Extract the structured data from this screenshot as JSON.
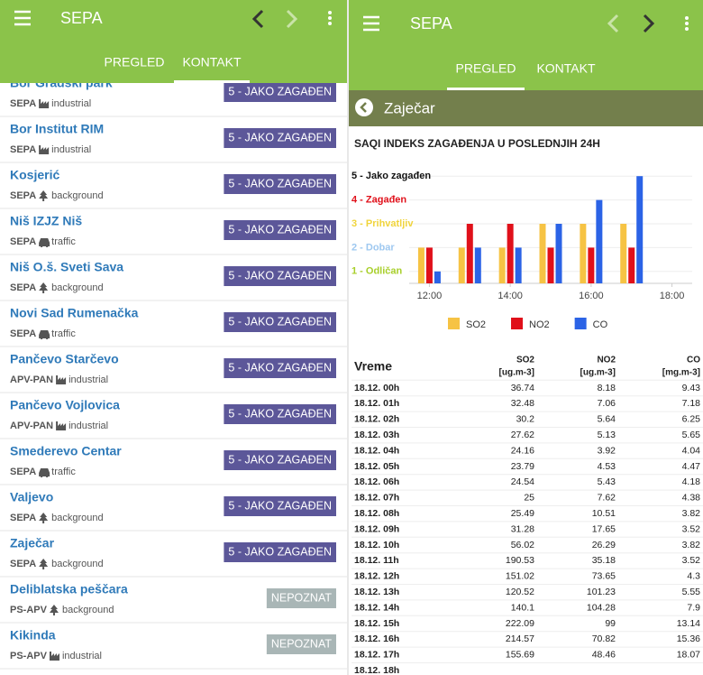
{
  "left": {
    "app_title": "SEPA",
    "tabs": [
      "PREGLED",
      "KONTAKT"
    ],
    "stations": [
      {
        "name": "Bor Gradski park",
        "network": "SEPA",
        "type": "industrial",
        "status": "5 - JAKO ZAGAĐEN",
        "badge_color": "#5c5799"
      },
      {
        "name": "Bor Institut RIM",
        "network": "SEPA",
        "type": "industrial",
        "status": "5 - JAKO ZAGAĐEN",
        "badge_color": "#5c5799"
      },
      {
        "name": "Kosjerić",
        "network": "SEPA",
        "type": "background",
        "status": "5 - JAKO ZAGAĐEN",
        "badge_color": "#5c5799"
      },
      {
        "name": "Niš IZJZ Niš",
        "network": "SEPA",
        "type": "traffic",
        "status": "5 - JAKO ZAGAĐEN",
        "badge_color": "#5c5799"
      },
      {
        "name": "Niš O.š. Sveti Sava",
        "network": "SEPA",
        "type": "background",
        "status": "5 - JAKO ZAGAĐEN",
        "badge_color": "#5c5799"
      },
      {
        "name": "Novi Sad Rumenačka",
        "network": "SEPA",
        "type": "traffic",
        "status": "5 - JAKO ZAGAĐEN",
        "badge_color": "#5c5799"
      },
      {
        "name": "Pančevo Starčevo",
        "network": "APV-PAN",
        "type": "industrial",
        "status": "5 - JAKO ZAGAĐEN",
        "badge_color": "#5c5799"
      },
      {
        "name": "Pančevo Vojlovica",
        "network": "APV-PAN",
        "type": "industrial",
        "status": "5 - JAKO ZAGAĐEN",
        "badge_color": "#5c5799"
      },
      {
        "name": "Smederevo Centar",
        "network": "SEPA",
        "type": "traffic",
        "status": "5 - JAKO ZAGAĐEN",
        "badge_color": "#5c5799"
      },
      {
        "name": "Valjevo",
        "network": "SEPA",
        "type": "background",
        "status": "5 - JAKO ZAGAĐEN",
        "badge_color": "#5c5799"
      },
      {
        "name": "Zaječar",
        "network": "SEPA",
        "type": "background",
        "status": "5 - JAKO ZAGAĐEN",
        "badge_color": "#5c5799"
      },
      {
        "name": "Deliblatska peščara",
        "network": "PS-APV",
        "type": "background",
        "status": "NEPOZNAT",
        "badge_color": "#a9b6b6"
      },
      {
        "name": "Kikinda",
        "network": "PS-APV",
        "type": "industrial",
        "status": "NEPOZNAT",
        "badge_color": "#a9b6b6"
      }
    ]
  },
  "right": {
    "app_title": "SEPA",
    "tabs": [
      "PREGLED",
      "KONTAKT"
    ],
    "station": "Zaječar",
    "table": {
      "columns": [
        {
          "name": "Vreme"
        },
        {
          "name": "SO2",
          "unit": "[ug.m-3]"
        },
        {
          "name": "NO2",
          "unit": "[ug.m-3]"
        },
        {
          "name": "CO",
          "unit": "[mg.m-3]"
        }
      ],
      "rows": [
        [
          "18.12. 00h",
          36.74,
          8.18,
          9.43
        ],
        [
          "18.12. 01h",
          32.48,
          7.06,
          7.18
        ],
        [
          "18.12. 02h",
          30.2,
          5.64,
          6.25
        ],
        [
          "18.12. 03h",
          27.62,
          5.13,
          5.65
        ],
        [
          "18.12. 04h",
          24.16,
          3.92,
          4.04
        ],
        [
          "18.12. 05h",
          23.79,
          4.53,
          4.47
        ],
        [
          "18.12. 06h",
          24.54,
          5.43,
          4.18
        ],
        [
          "18.12. 07h",
          25,
          7.62,
          4.38
        ],
        [
          "18.12. 08h",
          25.49,
          10.51,
          3.82
        ],
        [
          "18.12. 09h",
          31.28,
          17.65,
          3.52
        ],
        [
          "18.12. 10h",
          56.02,
          26.29,
          3.82
        ],
        [
          "18.12. 11h",
          190.53,
          35.18,
          3.52
        ],
        [
          "18.12. 12h",
          151.02,
          73.65,
          4.3
        ],
        [
          "18.12. 13h",
          120.52,
          101.23,
          5.55
        ],
        [
          "18.12. 14h",
          140.1,
          104.28,
          7.9
        ],
        [
          "18.12. 15h",
          222.09,
          99,
          13.14
        ],
        [
          "18.12. 16h",
          214.57,
          70.82,
          15.36
        ],
        [
          "18.12. 17h",
          155.69,
          48.46,
          18.07
        ],
        [
          "18.12. 18h"
        ]
      ]
    }
  },
  "chart_data": {
    "type": "bar",
    "title": "SAQI INDEKS ZAGAĐENJA U POSLEDNJIH 24H",
    "x": [
      12,
      13,
      14,
      15,
      16,
      17
    ],
    "xlim": [
      11.5,
      18.5
    ],
    "xticks": [
      {
        "value": 12,
        "label": "12:00"
      },
      {
        "value": 14,
        "label": "14:00"
      },
      {
        "value": 16,
        "label": "16:00"
      },
      {
        "value": 18,
        "label": "18:00"
      }
    ],
    "ylim": [
      0,
      5
    ],
    "yticks": [
      {
        "value": 4.5,
        "label": "5 - Jako zagađen"
      },
      {
        "value": 3.5,
        "label": "4 - Zagađen"
      },
      {
        "value": 2.5,
        "label": "3 - Prihvatljiv"
      },
      {
        "value": 1.5,
        "label": "2 - Dobar"
      },
      {
        "value": 0.5,
        "label": "1 - Odličan"
      }
    ],
    "ytick_colors": [
      "#111111",
      "#e0101a",
      "#f0d43c",
      "#9ec8f0",
      "#a8cf2a"
    ],
    "grid": true,
    "legend": "bottom",
    "series": [
      {
        "name": "SO2",
        "color": "#f6c344",
        "values": [
          1.5,
          1.5,
          1.5,
          2.5,
          2.5,
          2.5
        ]
      },
      {
        "name": "NO2",
        "color": "#e0101a",
        "values": [
          1.5,
          2.5,
          2.5,
          1.5,
          1.5,
          1.5
        ]
      },
      {
        "name": "CO",
        "color": "#2b63e6",
        "values": [
          0.5,
          1.5,
          1.5,
          2.5,
          3.5,
          4.5
        ]
      }
    ]
  }
}
